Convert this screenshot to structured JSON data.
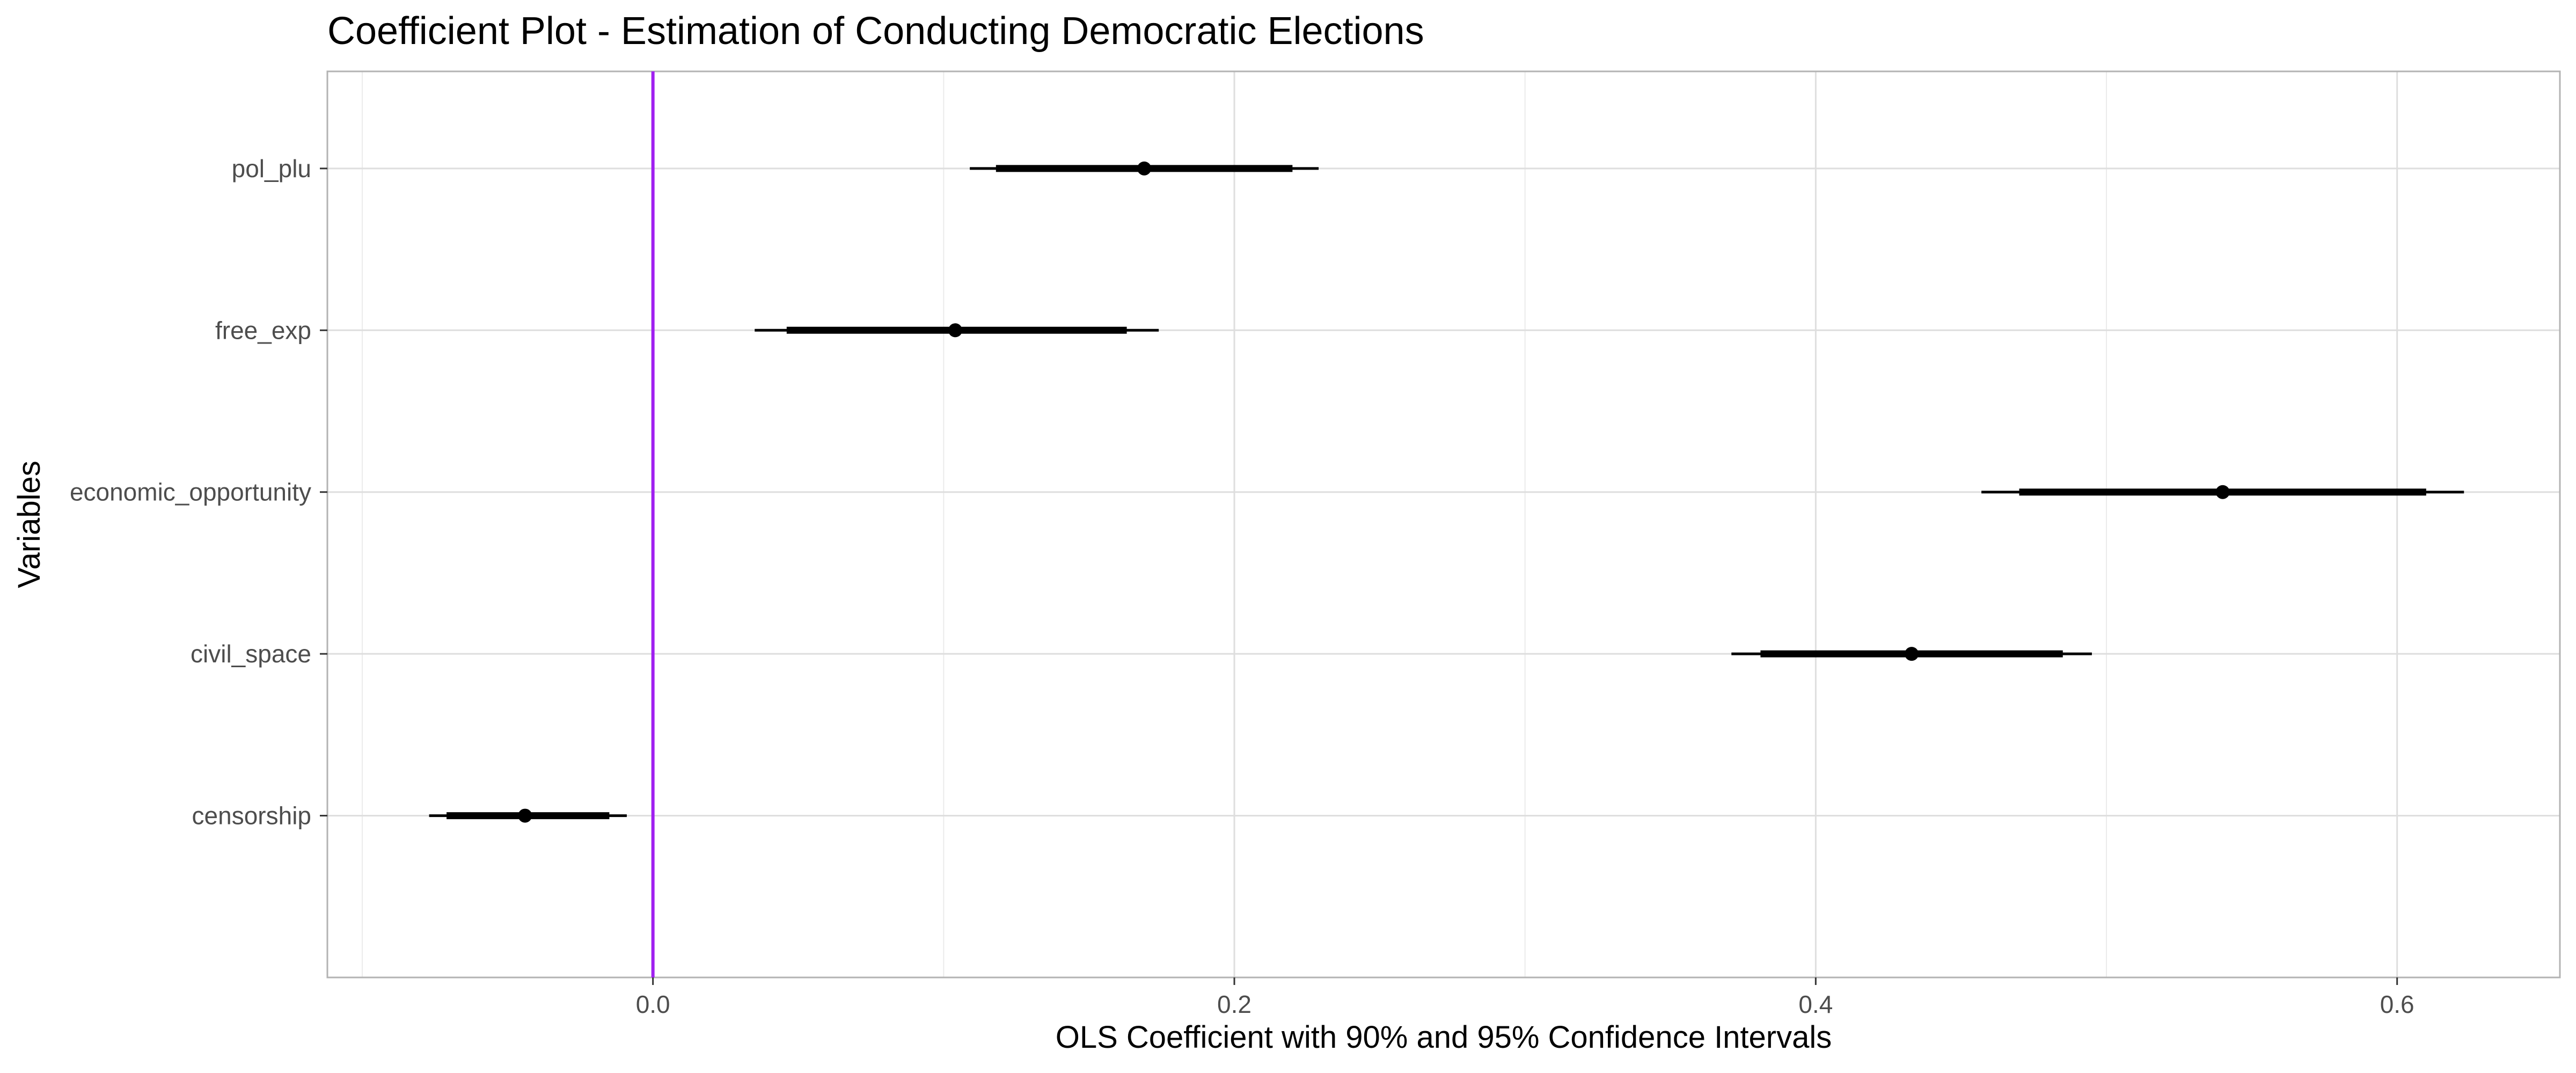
{
  "chart_data": {
    "type": "scatter",
    "title": "Coefficient Plot - Estimation of Conducting Democratic Elections",
    "xlabel": "OLS Coefficient with 90% and 95% Confidence Intervals",
    "ylabel": "Variables",
    "xlim": [
      -0.112,
      0.656
    ],
    "x_ticks": [
      0.0,
      0.2,
      0.4,
      0.6
    ],
    "x_tick_labels": [
      "0.0",
      "0.2",
      "0.4",
      "0.6"
    ],
    "reference_line": {
      "x": 0.0,
      "color": "#a020f0"
    },
    "grid": true,
    "legend": "none",
    "point_color": "#000000",
    "series": [
      {
        "variable": "pol_plu",
        "estimate": 0.169,
        "ci90": [
          0.118,
          0.22
        ],
        "ci95": [
          0.109,
          0.229
        ]
      },
      {
        "variable": "free_exp",
        "estimate": 0.104,
        "ci90": [
          0.046,
          0.163
        ],
        "ci95": [
          0.035,
          0.174
        ]
      },
      {
        "variable": "economic_opportunity",
        "estimate": 0.54,
        "ci90": [
          0.47,
          0.61
        ],
        "ci95": [
          0.457,
          0.623
        ]
      },
      {
        "variable": "civil_space",
        "estimate": 0.433,
        "ci90": [
          0.381,
          0.485
        ],
        "ci95": [
          0.371,
          0.495
        ]
      },
      {
        "variable": "censorship",
        "estimate": -0.044,
        "ci90": [
          -0.071,
          -0.015
        ],
        "ci95": [
          -0.077,
          -0.009
        ]
      }
    ]
  }
}
